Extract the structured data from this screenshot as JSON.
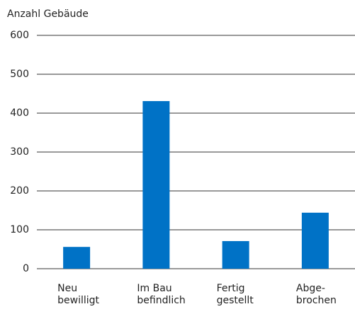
{
  "chart_data": {
    "type": "bar",
    "y_axis_title": "Anzahl Gebäude",
    "categories": [
      [
        "Neu",
        "bewilligt"
      ],
      [
        "Im Bau",
        "befindlich"
      ],
      [
        "Fertig",
        "gestellt"
      ],
      [
        "Abge-",
        "brochen"
      ]
    ],
    "values": [
      56,
      431,
      71,
      144
    ],
    "color": "#0072c6",
    "ylim": [
      0,
      600
    ],
    "yticks": [
      0,
      100,
      200,
      300,
      400,
      500,
      600
    ],
    "grid": true
  }
}
